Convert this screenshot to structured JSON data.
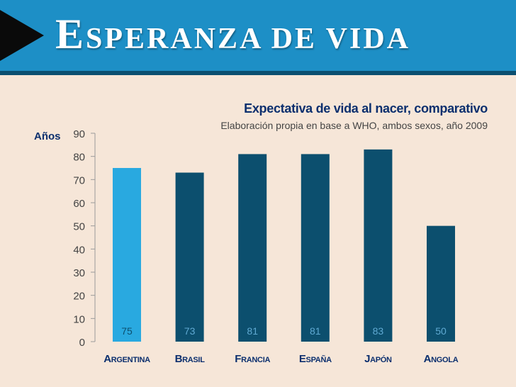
{
  "header": {
    "title_first": "E",
    "title_rest": "speranza de vida"
  },
  "colors": {
    "highlight": "#29a9e0",
    "bar": "#0c4f6e",
    "text_dark": "#0c2f6e"
  },
  "chart_data": {
    "type": "bar",
    "title": "Expectativa de vida al nacer, comparativo",
    "subtitle": "Elaboración propia en base a WHO, ambos sexos, año 2009",
    "ylabel": "Años",
    "xlabel": "",
    "categories": [
      "Argentina",
      "Brasil",
      "Francia",
      "España",
      "Japón",
      "Angola"
    ],
    "values": [
      75,
      73,
      81,
      81,
      83,
      50
    ],
    "data_labels": [
      "75",
      "73",
      "81",
      "81",
      "83",
      "50"
    ],
    "highlight_index": 0,
    "ylim": [
      0,
      90
    ],
    "yticks": [
      0,
      10,
      20,
      30,
      40,
      50,
      60,
      70,
      80,
      90
    ],
    "grid": false,
    "legend": "none"
  }
}
